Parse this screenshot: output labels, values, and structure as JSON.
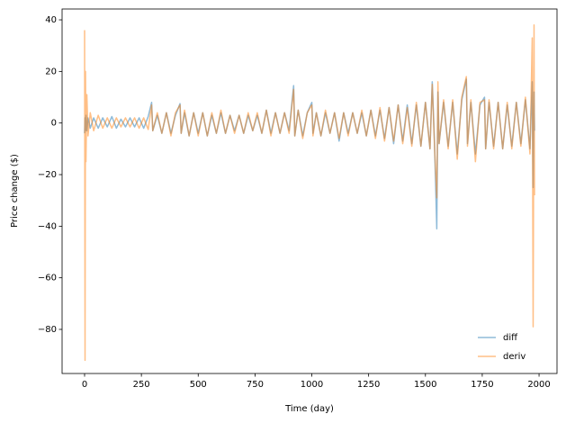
{
  "chart_data": {
    "type": "line",
    "xlabel": "Time (day)",
    "ylabel": "Price change ($)",
    "xlim": [
      -99,
      2079
    ],
    "ylim": [
      -97.1,
      44.2
    ],
    "xticks": [
      0,
      250,
      500,
      750,
      1000,
      1250,
      1500,
      1750,
      2000
    ],
    "yticks": [
      {
        "value": -80,
        "label": "−80"
      },
      {
        "value": -60,
        "label": "−60"
      },
      {
        "value": -40,
        "label": "−40"
      },
      {
        "value": -20,
        "label": "−20"
      },
      0,
      20,
      40
    ],
    "legend": "lower right",
    "x": [
      0,
      2,
      4,
      6,
      10,
      15,
      25,
      40,
      60,
      80,
      100,
      120,
      140,
      160,
      180,
      200,
      220,
      240,
      260,
      280,
      295,
      300,
      320,
      340,
      360,
      380,
      400,
      420,
      425,
      440,
      460,
      480,
      500,
      520,
      540,
      560,
      580,
      600,
      620,
      640,
      660,
      680,
      700,
      720,
      740,
      760,
      780,
      800,
      820,
      840,
      860,
      880,
      900,
      920,
      925,
      940,
      960,
      980,
      1000,
      1005,
      1020,
      1040,
      1060,
      1080,
      1100,
      1120,
      1140,
      1160,
      1180,
      1200,
      1220,
      1240,
      1260,
      1280,
      1300,
      1320,
      1340,
      1360,
      1380,
      1400,
      1420,
      1440,
      1460,
      1480,
      1500,
      1520,
      1530,
      1540,
      1550,
      1555,
      1560,
      1580,
      1600,
      1620,
      1640,
      1660,
      1680,
      1685,
      1700,
      1720,
      1740,
      1760,
      1765,
      1780,
      1800,
      1820,
      1840,
      1860,
      1880,
      1900,
      1920,
      1940,
      1960,
      1970,
      1974,
      1978,
      1980
    ],
    "series": [
      {
        "name": "diff",
        "color": "#1f77b4",
        "values": [
          -4,
          2,
          -3,
          3,
          -3,
          2,
          -2,
          2,
          -2,
          2,
          -1.5,
          2.5,
          -2,
          1.5,
          -1.5,
          2,
          -1.5,
          2,
          -2,
          2.5,
          8,
          -3,
          3,
          -4,
          4,
          -4,
          3,
          7.5,
          -4,
          4,
          -5,
          4,
          -4,
          4,
          -5,
          3,
          -4,
          4,
          -4,
          3,
          -3,
          3,
          -4,
          3,
          -3,
          3,
          -4,
          5,
          -4,
          4,
          -4,
          4,
          -3,
          14.5,
          -5,
          5,
          -5,
          4,
          8,
          -4,
          4,
          -5,
          4,
          -4,
          4,
          -7,
          4,
          -4,
          4,
          -4,
          4,
          -5,
          5,
          -5,
          5,
          -6,
          6,
          -8,
          7,
          -7,
          7,
          -8,
          7,
          -9,
          8,
          -10,
          16,
          -8,
          -41,
          12,
          -8,
          8,
          -9,
          8,
          -12,
          9,
          17,
          -8,
          8,
          -12,
          7,
          10,
          -10,
          8,
          -9,
          8,
          -10,
          7,
          -9,
          8,
          -8,
          9,
          -10,
          16,
          -25,
          12,
          -3
        ]
      },
      {
        "name": "deriv",
        "color": "#ff7f0e",
        "values": [
          36,
          -92,
          20,
          -15,
          11,
          -5,
          4,
          -3,
          3,
          -2,
          2,
          -2,
          2,
          -1.5,
          2,
          -1.5,
          2,
          -2,
          2,
          -2.5,
          7,
          -3,
          4,
          -4,
          4,
          -5,
          4,
          7,
          -4,
          5,
          -5,
          4,
          -5,
          4,
          -5,
          4,
          -4,
          5,
          -4,
          3,
          -4,
          3,
          -4,
          4,
          -3,
          4,
          -4,
          5,
          -5,
          4,
          -4,
          4,
          -4,
          13,
          -5,
          5,
          -6,
          4,
          7,
          -5,
          4,
          -5,
          5,
          -4,
          4,
          -6,
          4,
          -5,
          4,
          -4,
          5,
          -5,
          5,
          -6,
          6,
          -7,
          6,
          -7,
          7,
          -8,
          6,
          -9,
          8,
          -9,
          8,
          -10,
          15,
          -9,
          -29,
          16,
          -8,
          9,
          -10,
          9,
          -14,
          10,
          18,
          -9,
          9,
          -15,
          8,
          9,
          -10,
          9,
          -10,
          8,
          -10,
          8,
          -10,
          8,
          -9,
          10,
          -12,
          33,
          -79,
          38,
          -28
        ]
      }
    ]
  }
}
